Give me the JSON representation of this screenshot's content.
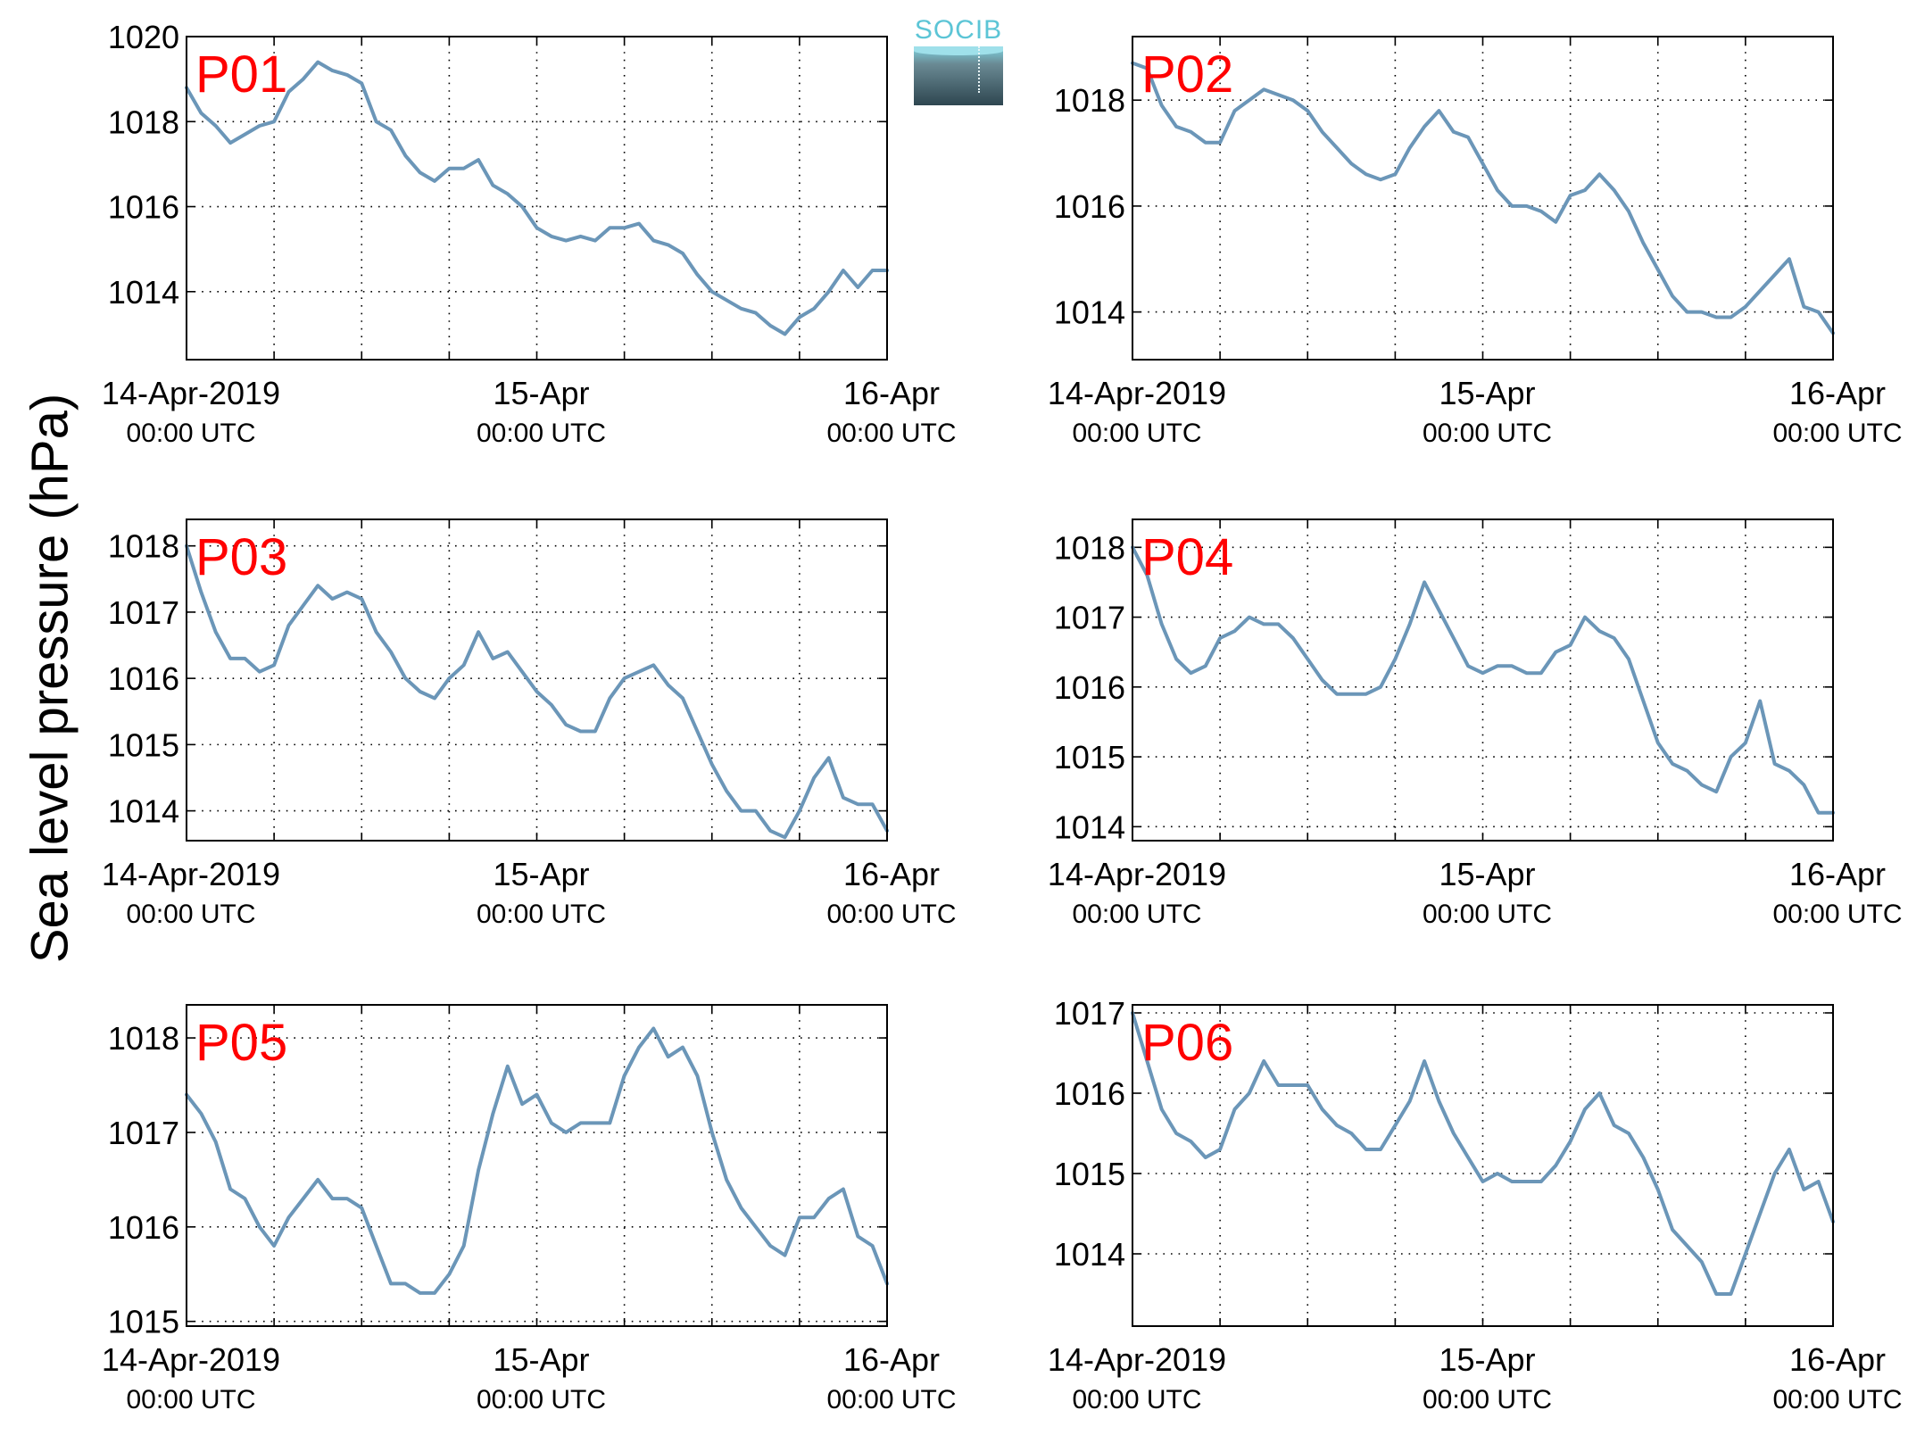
{
  "figure": {
    "ylabel": "Sea level pressure (hPa)",
    "logo_text": "SOCIB",
    "colors": {
      "line": "#6b96b8",
      "title": "#ff0000",
      "grid": "#000000"
    }
  },
  "chart_data": [
    {
      "type": "line",
      "title": "P01",
      "xlim": [
        0,
        48
      ],
      "ylim": [
        1012.4,
        1020
      ],
      "yticks": [
        1014,
        1016,
        1018,
        1020
      ],
      "xticks": [
        {
          "x": 0,
          "l1": "14-Apr-2019",
          "l2": "00:00 UTC"
        },
        {
          "x": 24,
          "l1": "15-Apr",
          "l2": "00:00 UTC"
        },
        {
          "x": 48,
          "l1": "16-Apr",
          "l2": "00:00 UTC"
        }
      ],
      "series": [
        {
          "x": [
            0,
            1,
            2,
            3,
            4,
            5,
            6,
            7,
            8,
            9,
            10,
            11,
            12,
            13,
            14,
            15,
            16,
            17,
            18,
            19,
            20,
            21,
            22,
            23,
            24,
            25,
            26,
            27,
            28,
            29,
            30,
            31,
            32,
            33,
            34,
            35,
            36,
            37,
            38,
            39,
            40,
            41,
            42,
            43,
            44,
            45,
            46,
            47,
            48
          ],
          "values": [
            1018.8,
            1018.2,
            1017.9,
            1017.5,
            1017.7,
            1017.9,
            1018.0,
            1018.7,
            1019.0,
            1019.4,
            1019.2,
            1019.1,
            1018.9,
            1018.0,
            1017.8,
            1017.2,
            1016.8,
            1016.6,
            1016.9,
            1016.9,
            1017.1,
            1016.5,
            1016.3,
            1016.0,
            1015.5,
            1015.3,
            1015.2,
            1015.3,
            1015.2,
            1015.5,
            1015.5,
            1015.6,
            1015.2,
            1015.1,
            1014.9,
            1014.4,
            1014.0,
            1013.8,
            1013.6,
            1013.5,
            1013.2,
            1013.0,
            1013.4,
            1013.6,
            1014.0,
            1014.5,
            1014.1,
            1014.5,
            1014.5
          ]
        }
      ]
    },
    {
      "type": "line",
      "title": "P02",
      "xlim": [
        0,
        48
      ],
      "ylim": [
        1013.1,
        1019.2
      ],
      "yticks": [
        1014,
        1016,
        1018
      ],
      "xticks": [
        {
          "x": 0,
          "l1": "14-Apr-2019",
          "l2": "00:00 UTC"
        },
        {
          "x": 24,
          "l1": "15-Apr",
          "l2": "00:00 UTC"
        },
        {
          "x": 48,
          "l1": "16-Apr",
          "l2": "00:00 UTC"
        }
      ],
      "series": [
        {
          "x": [
            0,
            1,
            2,
            3,
            4,
            5,
            6,
            7,
            8,
            9,
            10,
            11,
            12,
            13,
            14,
            15,
            16,
            17,
            18,
            19,
            20,
            21,
            22,
            23,
            24,
            25,
            26,
            27,
            28,
            29,
            30,
            31,
            32,
            33,
            34,
            35,
            36,
            37,
            38,
            39,
            40,
            41,
            42,
            43,
            44,
            45,
            46,
            47,
            48
          ],
          "values": [
            1018.7,
            1018.6,
            1017.9,
            1017.5,
            1017.4,
            1017.2,
            1017.2,
            1017.8,
            1018.0,
            1018.2,
            1018.1,
            1018.0,
            1017.8,
            1017.4,
            1017.1,
            1016.8,
            1016.6,
            1016.5,
            1016.6,
            1017.1,
            1017.5,
            1017.8,
            1017.4,
            1017.3,
            1016.8,
            1016.3,
            1016.0,
            1016.0,
            1015.9,
            1015.7,
            1016.2,
            1016.3,
            1016.6,
            1016.3,
            1015.9,
            1015.3,
            1014.8,
            1014.3,
            1014.0,
            1014.0,
            1013.9,
            1013.9,
            1014.1,
            1014.4,
            1014.7,
            1015.0,
            1014.1,
            1014.0,
            1013.6
          ]
        }
      ]
    },
    {
      "type": "line",
      "title": "P03",
      "xlim": [
        0,
        48
      ],
      "ylim": [
        1013.55,
        1018.4
      ],
      "yticks": [
        1014,
        1015,
        1016,
        1017,
        1018
      ],
      "xticks": [
        {
          "x": 0,
          "l1": "14-Apr-2019",
          "l2": "00:00 UTC"
        },
        {
          "x": 24,
          "l1": "15-Apr",
          "l2": "00:00 UTC"
        },
        {
          "x": 48,
          "l1": "16-Apr",
          "l2": "00:00 UTC"
        }
      ],
      "series": [
        {
          "x": [
            0,
            1,
            2,
            3,
            4,
            5,
            6,
            7,
            8,
            9,
            10,
            11,
            12,
            13,
            14,
            15,
            16,
            17,
            18,
            19,
            20,
            21,
            22,
            23,
            24,
            25,
            26,
            27,
            28,
            29,
            30,
            31,
            32,
            33,
            34,
            35,
            36,
            37,
            38,
            39,
            40,
            41,
            42,
            43,
            44,
            45,
            46,
            47,
            48
          ],
          "values": [
            1018.0,
            1017.3,
            1016.7,
            1016.3,
            1016.3,
            1016.1,
            1016.2,
            1016.8,
            1017.1,
            1017.4,
            1017.2,
            1017.3,
            1017.2,
            1016.7,
            1016.4,
            1016.0,
            1015.8,
            1015.7,
            1016.0,
            1016.2,
            1016.7,
            1016.3,
            1016.4,
            1016.1,
            1015.8,
            1015.6,
            1015.3,
            1015.2,
            1015.2,
            1015.7,
            1016.0,
            1016.1,
            1016.2,
            1015.9,
            1015.7,
            1015.2,
            1014.7,
            1014.3,
            1014.0,
            1014.0,
            1013.7,
            1013.6,
            1014.0,
            1014.5,
            1014.8,
            1014.2,
            1014.1,
            1014.1,
            1013.7
          ]
        }
      ]
    },
    {
      "type": "line",
      "title": "P04",
      "xlim": [
        0,
        48
      ],
      "ylim": [
        1013.8,
        1018.4
      ],
      "yticks": [
        1014,
        1015,
        1016,
        1017,
        1018
      ],
      "xticks": [
        {
          "x": 0,
          "l1": "14-Apr-2019",
          "l2": "00:00 UTC"
        },
        {
          "x": 24,
          "l1": "15-Apr",
          "l2": "00:00 UTC"
        },
        {
          "x": 48,
          "l1": "16-Apr",
          "l2": "00:00 UTC"
        }
      ],
      "series": [
        {
          "x": [
            0,
            1,
            2,
            3,
            4,
            5,
            6,
            7,
            8,
            9,
            10,
            11,
            12,
            13,
            14,
            15,
            16,
            17,
            18,
            19,
            20,
            21,
            22,
            23,
            24,
            25,
            26,
            27,
            28,
            29,
            30,
            31,
            32,
            33,
            34,
            35,
            36,
            37,
            38,
            39,
            40,
            41,
            42,
            43,
            44,
            45,
            46,
            47,
            48
          ],
          "values": [
            1018.0,
            1017.6,
            1016.9,
            1016.4,
            1016.2,
            1016.3,
            1016.7,
            1016.8,
            1017.0,
            1016.9,
            1016.9,
            1016.7,
            1016.4,
            1016.1,
            1015.9,
            1015.9,
            1015.9,
            1016.0,
            1016.4,
            1016.9,
            1017.5,
            1017.1,
            1016.7,
            1016.3,
            1016.2,
            1016.3,
            1016.3,
            1016.2,
            1016.2,
            1016.5,
            1016.6,
            1017.0,
            1016.8,
            1016.7,
            1016.4,
            1015.8,
            1015.2,
            1014.9,
            1014.8,
            1014.6,
            1014.5,
            1015.0,
            1015.2,
            1015.8,
            1014.9,
            1014.8,
            1014.6,
            1014.2,
            1014.2
          ]
        }
      ]
    },
    {
      "type": "line",
      "title": "P05",
      "xlim": [
        0,
        48
      ],
      "ylim": [
        1014.95,
        1018.35
      ],
      "yticks": [
        1015,
        1016,
        1017,
        1018
      ],
      "xticks": [
        {
          "x": 0,
          "l1": "14-Apr-2019",
          "l2": "00:00 UTC"
        },
        {
          "x": 24,
          "l1": "15-Apr",
          "l2": "00:00 UTC"
        },
        {
          "x": 48,
          "l1": "16-Apr",
          "l2": "00:00 UTC"
        }
      ],
      "series": [
        {
          "x": [
            0,
            1,
            2,
            3,
            4,
            5,
            6,
            7,
            8,
            9,
            10,
            11,
            12,
            13,
            14,
            15,
            16,
            17,
            18,
            19,
            20,
            21,
            22,
            23,
            24,
            25,
            26,
            27,
            28,
            29,
            30,
            31,
            32,
            33,
            34,
            35,
            36,
            37,
            38,
            39,
            40,
            41,
            42,
            43,
            44,
            45,
            46,
            47,
            48
          ],
          "values": [
            1017.4,
            1017.2,
            1016.9,
            1016.4,
            1016.3,
            1016.0,
            1015.8,
            1016.1,
            1016.3,
            1016.5,
            1016.3,
            1016.3,
            1016.2,
            1015.8,
            1015.4,
            1015.4,
            1015.3,
            1015.3,
            1015.5,
            1015.8,
            1016.6,
            1017.2,
            1017.7,
            1017.3,
            1017.4,
            1017.1,
            1017.0,
            1017.1,
            1017.1,
            1017.1,
            1017.6,
            1017.9,
            1018.1,
            1017.8,
            1017.9,
            1017.6,
            1017.0,
            1016.5,
            1016.2,
            1016.0,
            1015.8,
            1015.7,
            1016.1,
            1016.1,
            1016.3,
            1016.4,
            1015.9,
            1015.8,
            1015.4
          ]
        }
      ]
    },
    {
      "type": "line",
      "title": "P06",
      "xlim": [
        0,
        48
      ],
      "ylim": [
        1013.1,
        1017.1
      ],
      "yticks": [
        1014,
        1015,
        1016,
        1017
      ],
      "xticks": [
        {
          "x": 0,
          "l1": "14-Apr-2019",
          "l2": "00:00 UTC"
        },
        {
          "x": 24,
          "l1": "15-Apr",
          "l2": "00:00 UTC"
        },
        {
          "x": 48,
          "l1": "16-Apr",
          "l2": "00:00 UTC"
        }
      ],
      "series": [
        {
          "x": [
            0,
            1,
            2,
            3,
            4,
            5,
            6,
            7,
            8,
            9,
            10,
            11,
            12,
            13,
            14,
            15,
            16,
            17,
            18,
            19,
            20,
            21,
            22,
            23,
            24,
            25,
            26,
            27,
            28,
            29,
            30,
            31,
            32,
            33,
            34,
            35,
            36,
            37,
            38,
            39,
            40,
            41,
            42,
            43,
            44,
            45,
            46,
            47,
            48
          ],
          "values": [
            1017.0,
            1016.4,
            1015.8,
            1015.5,
            1015.4,
            1015.2,
            1015.3,
            1015.8,
            1016.0,
            1016.4,
            1016.1,
            1016.1,
            1016.1,
            1015.8,
            1015.6,
            1015.5,
            1015.3,
            1015.3,
            1015.6,
            1015.9,
            1016.4,
            1015.9,
            1015.5,
            1015.2,
            1014.9,
            1015.0,
            1014.9,
            1014.9,
            1014.9,
            1015.1,
            1015.4,
            1015.8,
            1016.0,
            1015.6,
            1015.5,
            1015.2,
            1014.8,
            1014.3,
            1014.1,
            1013.9,
            1013.5,
            1013.5,
            1014.0,
            1014.5,
            1015.0,
            1015.3,
            1014.8,
            1014.9,
            1014.4
          ]
        }
      ]
    }
  ]
}
